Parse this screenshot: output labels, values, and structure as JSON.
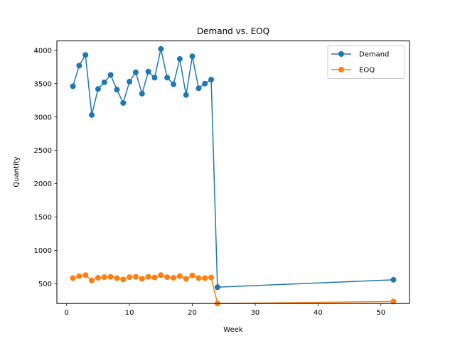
{
  "chart_data": {
    "type": "line",
    "title": "Demand vs. EOQ",
    "xlabel": "Week",
    "ylabel": "Quantity",
    "xlim": [
      -1.55,
      54.55
    ],
    "ylim": [
      205,
      4140
    ],
    "xticks": [
      0,
      10,
      20,
      30,
      40,
      50
    ],
    "yticks": [
      500,
      1000,
      1500,
      2000,
      2500,
      3000,
      3500,
      4000
    ],
    "grid": false,
    "legend_position": "top-right",
    "x": [
      1,
      2,
      3,
      4,
      5,
      6,
      7,
      8,
      9,
      10,
      11,
      12,
      13,
      14,
      15,
      16,
      17,
      18,
      19,
      20,
      21,
      22,
      23,
      24,
      52
    ],
    "series": [
      {
        "name": "Demand",
        "color": "#1f77b4",
        "values": [
          3460,
          3770,
          3930,
          3030,
          3420,
          3520,
          3630,
          3410,
          3210,
          3530,
          3670,
          3350,
          3680,
          3590,
          4020,
          3590,
          3490,
          3870,
          3330,
          3910,
          3430,
          3500,
          3560,
          450,
          560
        ]
      },
      {
        "name": "EOQ",
        "color": "#ff7f0e",
        "values": [
          585,
          615,
          630,
          550,
          590,
          600,
          605,
          585,
          565,
          600,
          605,
          575,
          605,
          595,
          630,
          600,
          590,
          615,
          575,
          625,
          585,
          585,
          595,
          205,
          235
        ]
      }
    ]
  }
}
